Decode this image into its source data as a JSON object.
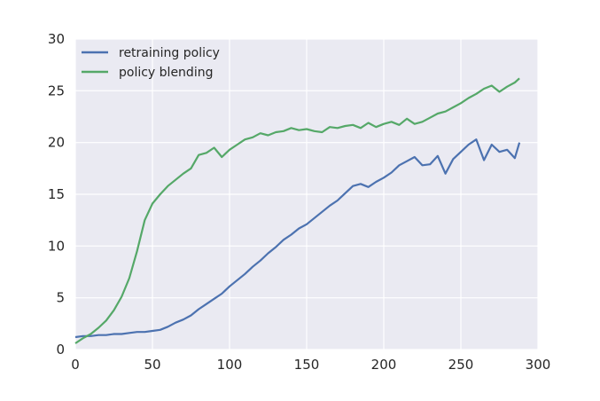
{
  "chart_data": {
    "type": "line",
    "title": "",
    "xlabel": "",
    "ylabel": "",
    "xlim": [
      0,
      300
    ],
    "ylim": [
      0,
      30
    ],
    "x_ticks": [
      0,
      50,
      100,
      150,
      200,
      250,
      300
    ],
    "y_ticks": [
      0,
      5,
      10,
      15,
      20,
      25,
      30
    ],
    "x_tick_labels": [
      "0",
      "50",
      "100",
      "150",
      "200",
      "250",
      "300"
    ],
    "y_tick_labels": [
      "0",
      "5",
      "10",
      "15",
      "20",
      "25",
      "30"
    ],
    "grid": true,
    "legend_position": "top-left",
    "background": "#EAEAF2",
    "series": [
      {
        "name": "retraining policy",
        "color": "#4C72B0",
        "x": [
          0,
          5,
          10,
          15,
          20,
          25,
          30,
          35,
          40,
          45,
          50,
          55,
          60,
          65,
          70,
          75,
          80,
          85,
          90,
          95,
          100,
          105,
          110,
          115,
          120,
          125,
          130,
          135,
          140,
          145,
          150,
          155,
          160,
          165,
          170,
          175,
          180,
          185,
          190,
          195,
          200,
          205,
          210,
          215,
          220,
          225,
          230,
          235,
          240,
          245,
          250,
          255,
          260,
          265,
          270,
          275,
          280,
          285,
          288
        ],
        "y": [
          1.2,
          1.3,
          1.3,
          1.4,
          1.4,
          1.5,
          1.5,
          1.6,
          1.7,
          1.7,
          1.8,
          1.9,
          2.2,
          2.6,
          2.9,
          3.3,
          3.9,
          4.4,
          4.9,
          5.4,
          6.1,
          6.7,
          7.3,
          8.0,
          8.6,
          9.3,
          9.9,
          10.6,
          11.1,
          11.7,
          12.1,
          12.7,
          13.3,
          13.9,
          14.4,
          15.1,
          15.8,
          16.0,
          15.7,
          16.2,
          16.6,
          17.1,
          17.8,
          18.2,
          18.6,
          17.8,
          17.9,
          18.7,
          17.0,
          18.4,
          19.1,
          19.8,
          20.3,
          18.3,
          19.8,
          19.1,
          19.3,
          18.5,
          20.0
        ]
      },
      {
        "name": "policy blending",
        "color": "#55A868",
        "x": [
          0,
          5,
          10,
          15,
          20,
          25,
          30,
          35,
          40,
          45,
          50,
          55,
          60,
          65,
          70,
          75,
          80,
          85,
          90,
          95,
          100,
          105,
          110,
          115,
          120,
          125,
          130,
          135,
          140,
          145,
          150,
          155,
          160,
          165,
          170,
          175,
          180,
          185,
          190,
          195,
          200,
          205,
          210,
          215,
          220,
          225,
          230,
          235,
          240,
          245,
          250,
          255,
          260,
          265,
          270,
          275,
          280,
          285,
          288
        ],
        "y": [
          0.6,
          1.1,
          1.5,
          2.1,
          2.8,
          3.8,
          5.1,
          6.9,
          9.5,
          12.5,
          14.1,
          15.0,
          15.8,
          16.4,
          17.0,
          17.5,
          18.8,
          19.0,
          19.5,
          18.6,
          19.3,
          19.8,
          20.3,
          20.5,
          20.9,
          20.7,
          21.0,
          21.1,
          21.4,
          21.2,
          21.3,
          21.1,
          21.0,
          21.5,
          21.4,
          21.6,
          21.7,
          21.4,
          21.9,
          21.5,
          21.8,
          22.0,
          21.7,
          22.3,
          21.8,
          22.0,
          22.4,
          22.8,
          23.0,
          23.4,
          23.8,
          24.3,
          24.7,
          25.2,
          25.5,
          24.9,
          25.4,
          25.8,
          26.2
        ]
      }
    ]
  }
}
